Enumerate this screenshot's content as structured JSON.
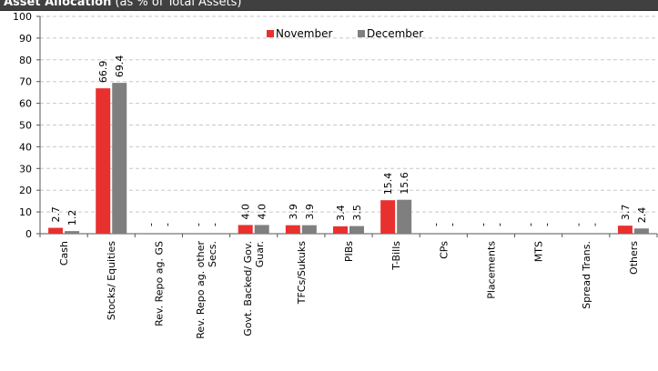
{
  "header": {
    "title_bold": "Asset Allocation",
    "title_rest": " (as % of Total Assets)"
  },
  "chart_data": {
    "type": "bar",
    "categories": [
      "Cash",
      "Stocks/ Equities",
      "Rev. Repo ag. GS",
      "Rev. Repo ag. other Secs.",
      "Govt. Backed/ Gov. Guar.",
      "TFCs/Sukuks",
      "PIBs",
      "T-Bills",
      "CPs",
      "Placements",
      "MTS",
      "Spread Trans.",
      "Others"
    ],
    "category_lines": [
      [
        "Cash"
      ],
      [
        "Stocks/ Equities"
      ],
      [
        "Rev. Repo ag. GS"
      ],
      [
        "Rev. Repo ag. other",
        "Secs."
      ],
      [
        "Govt. Backed/ Gov.",
        "Guar."
      ],
      [
        "TFCs/Sukuks"
      ],
      [
        "PIBs"
      ],
      [
        "T-Bills"
      ],
      [
        "CPs"
      ],
      [
        "Placements"
      ],
      [
        "MTS"
      ],
      [
        "Spread Trans."
      ],
      [
        "Others"
      ]
    ],
    "series": [
      {
        "name": "November",
        "color": "#e8312f",
        "values": [
          2.7,
          66.9,
          null,
          null,
          4.0,
          3.9,
          3.4,
          15.4,
          null,
          null,
          null,
          null,
          3.7
        ],
        "labels": [
          "2.7",
          "66.9",
          "-",
          "-",
          "4.0",
          "3.9",
          "3.4",
          "15.4",
          "-",
          "-",
          "-",
          "-",
          "3.7"
        ]
      },
      {
        "name": "December",
        "color": "#7f7f7f",
        "values": [
          1.2,
          69.4,
          null,
          null,
          4.0,
          3.9,
          3.5,
          15.6,
          null,
          null,
          null,
          null,
          2.4
        ],
        "labels": [
          "1.2",
          "69.4",
          "-",
          "-",
          "4.0",
          "3.9",
          "3.5",
          "15.6",
          "-",
          "-",
          "-",
          "-",
          "2.4"
        ]
      }
    ],
    "yticks": [
      "0",
      "10",
      "20",
      "30",
      "40",
      "50",
      "60",
      "70",
      "80",
      "90",
      "100"
    ],
    "ylim": [
      0,
      100
    ],
    "grid": "horizontal dashed",
    "legend_position": "top-center"
  }
}
